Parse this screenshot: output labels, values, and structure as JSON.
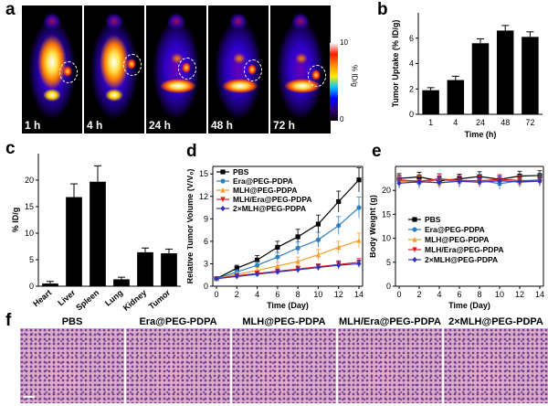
{
  "panels": {
    "a": "a",
    "b": "b",
    "c": "c",
    "d": "d",
    "e": "e",
    "f": "f"
  },
  "panel_a": {
    "timepoints": [
      "1 h",
      "4 h",
      "24 h",
      "48 h",
      "72 h"
    ],
    "colorbar": {
      "max": "10",
      "min": "0",
      "unit": "% ID/g"
    }
  },
  "panel_f": {
    "groups": [
      "PBS",
      "Era@PEG-PDPA",
      "MLH@PEG-PDPA",
      "MLH/Era@PEG-PDPA",
      "2×MLH@PEG-PDPA"
    ]
  },
  "chart_data": [
    {
      "id": "b",
      "type": "bar",
      "categories": [
        "1",
        "4",
        "24",
        "48",
        "72"
      ],
      "values": [
        1.9,
        2.7,
        5.6,
        6.6,
        6.1
      ],
      "errors": [
        0.2,
        0.3,
        0.35,
        0.4,
        0.4
      ],
      "xlabel": "Time (h)",
      "ylabel": "Tumor Uptake (% ID/g)",
      "ylim": [
        0,
        8
      ],
      "yticks": [
        "0",
        "2",
        "4",
        "6"
      ],
      "bar_color": "#000000"
    },
    {
      "id": "c",
      "type": "bar",
      "categories": [
        "Heart",
        "Liver",
        "Spleen",
        "Lung",
        "Kidney",
        "Tumor"
      ],
      "values": [
        0.5,
        16.8,
        19.7,
        1.3,
        6.4,
        6.2
      ],
      "errors": [
        0.4,
        2.5,
        3.0,
        0.4,
        0.8,
        0.8
      ],
      "ylabel": "% ID/g",
      "ylim": [
        0,
        25
      ],
      "yticks": [
        "0",
        "5",
        "10",
        "15",
        "20"
      ],
      "bar_color": "#000000"
    },
    {
      "id": "d",
      "type": "line",
      "x": [
        0,
        2,
        4,
        6,
        8,
        10,
        12,
        14
      ],
      "xticks": [
        "0",
        "2",
        "4",
        "6",
        "8",
        "10",
        "12",
        "14"
      ],
      "xlabel": "Time (Day)",
      "ylabel": "Relative Tumor Volume (V/V₀)",
      "ylim": [
        0,
        16
      ],
      "yticks": [
        "0",
        "3",
        "6",
        "9",
        "12",
        "15"
      ],
      "series": [
        {
          "name": "PBS",
          "color": "#000000",
          "marker": "square",
          "values": [
            1.0,
            2.4,
            3.5,
            5.2,
            6.6,
            8.3,
            11.3,
            14.2
          ],
          "errors": [
            0.1,
            0.4,
            0.6,
            0.8,
            1.0,
            1.2,
            1.4,
            1.6
          ]
        },
        {
          "name": "Era@PEG-PDPA",
          "color": "#2f7fbf",
          "marker": "circle",
          "values": [
            1.0,
            1.9,
            2.8,
            3.9,
            5.1,
            6.2,
            8.1,
            10.5
          ],
          "errors": [
            0.1,
            0.3,
            0.5,
            0.6,
            0.8,
            1.0,
            1.2,
            1.4
          ]
        },
        {
          "name": "MLH@PEG-PDPA",
          "color": "#f0a030",
          "marker": "triangle-up",
          "values": [
            1.0,
            1.6,
            2.1,
            2.7,
            3.3,
            4.2,
            5.2,
            6.1
          ],
          "errors": [
            0.1,
            0.3,
            0.4,
            0.5,
            0.6,
            0.7,
            0.8,
            1.0
          ]
        },
        {
          "name": "MLH/Era@PEG-PDPA",
          "color": "#e02020",
          "marker": "triangle-down",
          "values": [
            1.0,
            1.4,
            1.7,
            2.0,
            2.3,
            2.6,
            2.9,
            3.2
          ],
          "errors": [
            0.1,
            0.2,
            0.3,
            0.3,
            0.4,
            0.4,
            0.5,
            0.5
          ]
        },
        {
          "name": "2×MLH@PEG-PDPA",
          "color": "#3030c0",
          "marker": "diamond",
          "values": [
            1.0,
            1.3,
            1.6,
            1.9,
            2.2,
            2.5,
            2.8,
            3.0
          ],
          "errors": [
            0.1,
            0.2,
            0.3,
            0.3,
            0.4,
            0.4,
            0.5,
            0.5
          ]
        }
      ]
    },
    {
      "id": "e",
      "type": "line",
      "x": [
        0,
        2,
        4,
        6,
        8,
        10,
        12,
        14
      ],
      "xticks": [
        "0",
        "2",
        "4",
        "6",
        "8",
        "10",
        "12",
        "14"
      ],
      "xlabel": "Time (Day)",
      "ylabel": "Body Weight (g)",
      "ylim": [
        0,
        25
      ],
      "yticks": [
        "0",
        "5",
        "10",
        "15",
        "20"
      ],
      "series": [
        {
          "name": "PBS",
          "color": "#000000",
          "marker": "square",
          "values": [
            22.5,
            22.8,
            22.0,
            22.4,
            22.9,
            22.3,
            23.0,
            23.1
          ],
          "errors": [
            1.0,
            1.0,
            1.0,
            1.0,
            1.0,
            1.0,
            1.0,
            1.0
          ]
        },
        {
          "name": "Era@PEG-PDPA",
          "color": "#2f7fbf",
          "marker": "circle",
          "values": [
            22.0,
            21.6,
            22.3,
            21.8,
            22.1,
            21.4,
            22.0,
            22.2
          ],
          "errors": [
            1.2,
            1.2,
            1.2,
            1.2,
            1.2,
            1.2,
            1.2,
            1.2
          ]
        },
        {
          "name": "MLH@PEG-PDPA",
          "color": "#f0a030",
          "marker": "triangle-up",
          "values": [
            21.8,
            22.1,
            21.5,
            22.0,
            21.7,
            22.2,
            21.6,
            22.0
          ],
          "errors": [
            1.0,
            1.0,
            1.0,
            1.0,
            1.0,
            1.0,
            1.0,
            1.0
          ]
        },
        {
          "name": "MLH/Era@PEG-PDPA",
          "color": "#e02020",
          "marker": "triangle-down",
          "values": [
            22.2,
            21.9,
            22.4,
            22.1,
            22.0,
            22.3,
            22.1,
            21.9
          ],
          "errors": [
            1.0,
            1.0,
            1.0,
            1.0,
            1.0,
            1.0,
            1.0,
            1.0
          ]
        },
        {
          "name": "2×MLH@PEG-PDPA",
          "color": "#3030c0",
          "marker": "diamond",
          "values": [
            21.5,
            21.8,
            21.6,
            21.9,
            21.7,
            22.0,
            21.8,
            21.9
          ],
          "errors": [
            1.0,
            1.0,
            1.0,
            1.0,
            1.0,
            1.0,
            1.0,
            1.0
          ]
        }
      ]
    }
  ]
}
